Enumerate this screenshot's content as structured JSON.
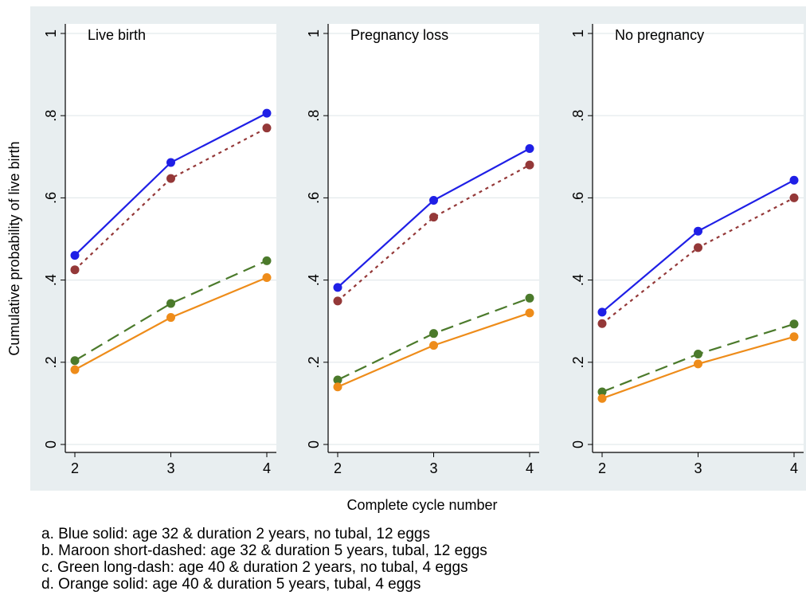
{
  "chart_data": {
    "type": "line",
    "ylabel": "Cumulative probability of live birth",
    "xlabel": "Complete cycle number",
    "ylim": [
      0,
      1
    ],
    "yticks": [
      0,
      0.2,
      0.4,
      0.6,
      0.8,
      1
    ],
    "ytick_labels": [
      "0",
      ".2",
      ".4",
      ".6",
      ".8",
      "1"
    ],
    "x": [
      2,
      3,
      4
    ],
    "xtick_labels": [
      "2",
      "3",
      "4"
    ],
    "grid": true,
    "panels": [
      {
        "title": "Live birth",
        "series": [
          {
            "key": "a",
            "color": "#1f1fe6",
            "dash": "solid",
            "values": [
              0.46,
              0.686,
              0.806
            ]
          },
          {
            "key": "b",
            "color": "#943838",
            "dash": "short-dash",
            "values": [
              0.425,
              0.647,
              0.77
            ]
          },
          {
            "key": "c",
            "color": "#4b7a2b",
            "dash": "long-dash",
            "values": [
              0.204,
              0.343,
              0.447
            ]
          },
          {
            "key": "d",
            "color": "#ee8c1a",
            "dash": "solid",
            "values": [
              0.182,
              0.309,
              0.406
            ]
          }
        ]
      },
      {
        "title": "Pregnancy loss",
        "series": [
          {
            "key": "a",
            "color": "#1f1fe6",
            "dash": "solid",
            "values": [
              0.382,
              0.594,
              0.72
            ]
          },
          {
            "key": "b",
            "color": "#943838",
            "dash": "short-dash",
            "values": [
              0.349,
              0.553,
              0.68
            ]
          },
          {
            "key": "c",
            "color": "#4b7a2b",
            "dash": "long-dash",
            "values": [
              0.157,
              0.27,
              0.356
            ]
          },
          {
            "key": "d",
            "color": "#ee8c1a",
            "dash": "solid",
            "values": [
              0.14,
              0.241,
              0.32
            ]
          }
        ]
      },
      {
        "title": "No pregnancy",
        "series": [
          {
            "key": "a",
            "color": "#1f1fe6",
            "dash": "solid",
            "values": [
              0.322,
              0.519,
              0.643
            ]
          },
          {
            "key": "b",
            "color": "#943838",
            "dash": "short-dash",
            "values": [
              0.294,
              0.479,
              0.6
            ]
          },
          {
            "key": "c",
            "color": "#4b7a2b",
            "dash": "long-dash",
            "values": [
              0.128,
              0.22,
              0.293
            ]
          },
          {
            "key": "d",
            "color": "#ee8c1a",
            "dash": "solid",
            "values": [
              0.112,
              0.196,
              0.262
            ]
          }
        ]
      }
    ]
  },
  "legend": {
    "a": "a. Blue solid: age 32 & duration 2 years, no tubal, 12 eggs",
    "b": "b. Maroon short-dashed: age 32 & duration 5 years, tubal, 12 eggs",
    "c": "c. Green long-dash: age 40 & duration 2 years, no tubal, 4 eggs",
    "d": "d. Orange solid: age 40 & duration 5 years, tubal, 4 eggs"
  },
  "colors": {
    "outer_background": "#e8eef0",
    "plot_background": "#ffffff",
    "grid": "#e3e9ec"
  }
}
